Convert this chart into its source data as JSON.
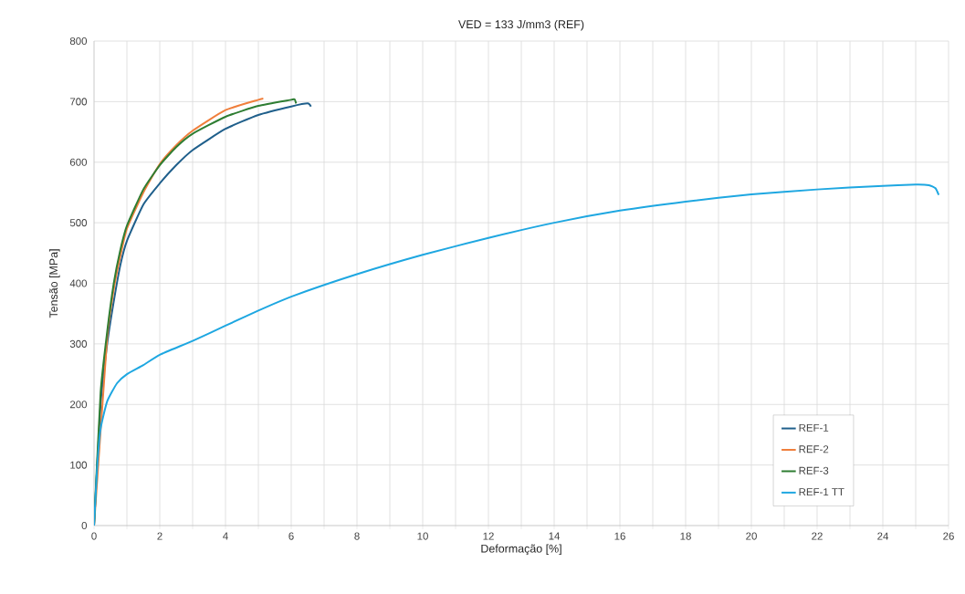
{
  "chart_data": {
    "type": "line",
    "title": "VED = 133 J/mm3 (REF)",
    "xlabel": "Deformação [%]",
    "ylabel": "Tensão [MPa]",
    "xlim": [
      0,
      26
    ],
    "ylim": [
      0,
      800
    ],
    "xticks": [
      0,
      2,
      4,
      6,
      8,
      10,
      12,
      14,
      16,
      18,
      20,
      22,
      24,
      26
    ],
    "yticks": [
      0,
      100,
      200,
      300,
      400,
      500,
      600,
      700,
      800
    ],
    "grid": true,
    "legend": "bottom right",
    "marker": "none",
    "line_style": "solid",
    "series": [
      {
        "name": "REF-1",
        "color": "#1f5f8b",
        "x": [
          0,
          0.2,
          0.4,
          0.6,
          0.8,
          1,
          1.5,
          2,
          2.5,
          3,
          4,
          5,
          6,
          6.5,
          6.6
        ],
        "values": [
          0,
          200,
          300,
          370,
          430,
          470,
          530,
          565,
          595,
          620,
          655,
          678,
          692,
          697,
          692
        ]
      },
      {
        "name": "REF-2",
        "color": "#f07f3c",
        "x": [
          0,
          0.2,
          0.4,
          0.6,
          0.8,
          1,
          1.5,
          2,
          2.5,
          3,
          4,
          5,
          5.15
        ],
        "values": [
          0,
          null,
          310,
          390,
          445,
          490,
          550,
          597,
          628,
          652,
          686,
          703,
          705
        ]
      },
      {
        "name": "REF-3",
        "color": "#2e7d32",
        "x": [
          0,
          0.2,
          0.4,
          0.6,
          0.8,
          1,
          1.5,
          2,
          2.5,
          3,
          4,
          5,
          6,
          6.1,
          6.15
        ],
        "values": [
          0,
          220,
          320,
          400,
          455,
          495,
          555,
          595,
          625,
          647,
          675,
          693,
          703,
          704,
          697
        ]
      },
      {
        "name": "REF-1 TT",
        "color": "#1ea7e1",
        "x": [
          0,
          0.1,
          0.2,
          0.4,
          0.7,
          1,
          1.5,
          2,
          3,
          4,
          5,
          6,
          8,
          10,
          12,
          14,
          16,
          18,
          20,
          22,
          24,
          25,
          25.4,
          25.6,
          25.7
        ],
        "values": [
          0,
          100,
          160,
          205,
          235,
          250,
          265,
          282,
          305,
          330,
          355,
          378,
          415,
          447,
          475,
          500,
          520,
          535,
          547,
          555,
          561,
          563,
          562,
          557,
          546
        ]
      }
    ]
  }
}
